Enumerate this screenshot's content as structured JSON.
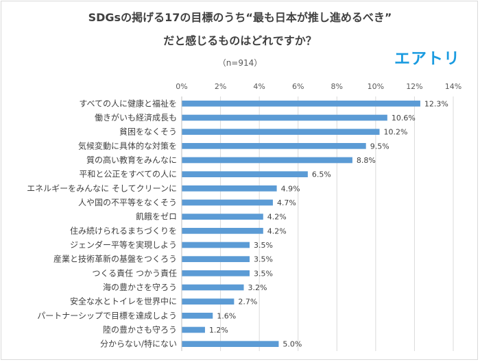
{
  "header": {
    "title_line1": "SDGsの掲げる17の目標のうち“最も日本が推し進めるべき”",
    "title_line2": "だと感じるものはどれですか？",
    "subtitle": "（n=914）",
    "brand": "エアトリ"
  },
  "chart_data": {
    "type": "bar",
    "orientation": "horizontal",
    "title": "SDGsの掲げる17の目標のうち“最も日本が推し進めるべき”だと感じるものはどれですか？",
    "subtitle": "（n=914）",
    "categories": [
      "すべての人に健康と福祉を",
      "働きがいも経済成長も",
      "貧困をなくそう",
      "気候変動に具体的な対策を",
      "質の高い教育をみんなに",
      "平和と公正をすべての人に",
      "エネルギーをみんなに そしてクリーンに",
      "人や国の不平等をなくそう",
      "飢餓をゼロ",
      "住み続けられるまちづくりを",
      "ジェンダー平等を実現しよう",
      "産業と技術革新の基盤をつくろう",
      "つくる責任 つかう責任",
      "海の豊かさを守ろう",
      "安全な水とトイレを世界中に",
      "パートナーシップで目標を達成しよう",
      "陸の豊かさも守ろう",
      "分からない/特にない"
    ],
    "values": [
      12.3,
      10.6,
      10.2,
      9.5,
      8.8,
      6.5,
      4.9,
      4.7,
      4.2,
      4.2,
      3.5,
      3.5,
      3.5,
      3.2,
      2.7,
      1.6,
      1.2,
      5.0
    ],
    "value_labels": [
      "12.3%",
      "10.6%",
      "10.2%",
      "9.5%",
      "8.8%",
      "6.5%",
      "4.9%",
      "4.7%",
      "4.2%",
      "4.2%",
      "3.5%",
      "3.5%",
      "3.5%",
      "3.2%",
      "2.7%",
      "1.6%",
      "1.2%",
      "5.0%"
    ],
    "xlim": [
      0,
      14
    ],
    "ticks": [
      0,
      2,
      4,
      6,
      8,
      10,
      12,
      14
    ],
    "tick_labels": [
      "0%",
      "2%",
      "4%",
      "6%",
      "8%",
      "10%",
      "12%",
      "14%"
    ],
    "xlabel": "",
    "ylabel": "",
    "grid": true,
    "axis_position": "top",
    "bar_color": "#5b9bd5",
    "grid_color": "#d9d9d9"
  }
}
